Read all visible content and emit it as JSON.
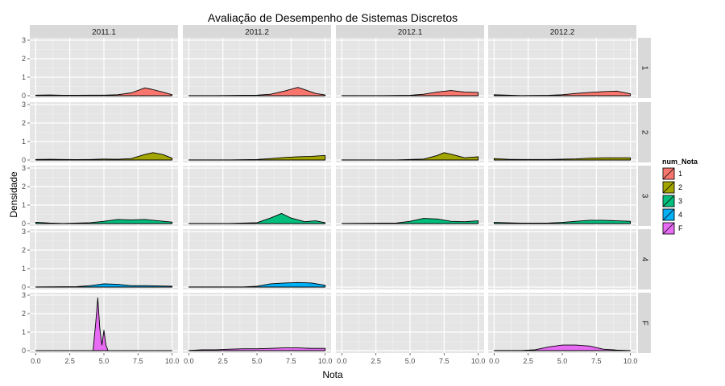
{
  "chart_data": {
    "type": "area",
    "subtype": "faceted density",
    "title": "Avaliação de Desempenho de Sistemas Discretos",
    "xlabel": "Nota",
    "ylabel": "Densidade",
    "xlim": [
      0,
      10
    ],
    "ylim": [
      0,
      3
    ],
    "x_ticks": [
      "0.0",
      "2.5",
      "5.0",
      "7.5",
      "10.0"
    ],
    "y_ticks": [
      "0",
      "1",
      "2",
      "3"
    ],
    "columns": [
      "2011.1",
      "2011.2",
      "2012.1",
      "2012.2"
    ],
    "rows": [
      "1",
      "2",
      "3",
      "4",
      "F"
    ],
    "grid": true,
    "legend": {
      "title": "num_Nota",
      "position": "right",
      "entries": [
        {
          "label": "1",
          "color": "#F8766D"
        },
        {
          "label": "2",
          "color": "#A3A500"
        },
        {
          "label": "3",
          "color": "#00BF7D"
        },
        {
          "label": "4",
          "color": "#00B0F6"
        },
        {
          "label": "F",
          "color": "#E76BF3"
        }
      ]
    },
    "panels": [
      {
        "column": "2011.1",
        "row": "1",
        "points": [
          [
            0,
            0.03
          ],
          [
            1,
            0.04
          ],
          [
            2,
            0.02
          ],
          [
            3,
            0.02
          ],
          [
            4,
            0.03
          ],
          [
            5,
            0.03
          ],
          [
            6,
            0.05
          ],
          [
            7,
            0.15
          ],
          [
            8,
            0.42
          ],
          [
            8.5,
            0.35
          ],
          [
            9.3,
            0.2
          ],
          [
            10,
            0.05
          ]
        ]
      },
      {
        "column": "2011.2",
        "row": "1",
        "points": [
          [
            0,
            0.01
          ],
          [
            2,
            0.01
          ],
          [
            4,
            0.02
          ],
          [
            5,
            0.03
          ],
          [
            6,
            0.08
          ],
          [
            7,
            0.25
          ],
          [
            8,
            0.45
          ],
          [
            8.6,
            0.3
          ],
          [
            9.3,
            0.12
          ],
          [
            10,
            0.04
          ]
        ]
      },
      {
        "column": "2012.1",
        "row": "1",
        "points": [
          [
            0,
            0.01
          ],
          [
            3,
            0.01
          ],
          [
            5,
            0.02
          ],
          [
            6,
            0.08
          ],
          [
            7,
            0.2
          ],
          [
            8,
            0.28
          ],
          [
            9,
            0.2
          ],
          [
            10,
            0.18
          ]
        ]
      },
      {
        "column": "2012.2",
        "row": "1",
        "points": [
          [
            0,
            0.05
          ],
          [
            1,
            0.03
          ],
          [
            2,
            0.01
          ],
          [
            4,
            0.02
          ],
          [
            5,
            0.05
          ],
          [
            6,
            0.12
          ],
          [
            7,
            0.18
          ],
          [
            8,
            0.22
          ],
          [
            9,
            0.25
          ],
          [
            10,
            0.1
          ]
        ]
      },
      {
        "column": "2011.1",
        "row": "2",
        "points": [
          [
            0,
            0.03
          ],
          [
            1,
            0.04
          ],
          [
            2,
            0.03
          ],
          [
            3,
            0.02
          ],
          [
            4,
            0.03
          ],
          [
            5,
            0.05
          ],
          [
            6,
            0.04
          ],
          [
            7,
            0.08
          ],
          [
            8,
            0.3
          ],
          [
            8.6,
            0.4
          ],
          [
            9.3,
            0.3
          ],
          [
            10,
            0.1
          ]
        ]
      },
      {
        "column": "2011.2",
        "row": "2",
        "points": [
          [
            0,
            0.01
          ],
          [
            3,
            0.01
          ],
          [
            5,
            0.03
          ],
          [
            6,
            0.08
          ],
          [
            7,
            0.14
          ],
          [
            8,
            0.18
          ],
          [
            9,
            0.2
          ],
          [
            10,
            0.25
          ]
        ]
      },
      {
        "column": "2012.1",
        "row": "2",
        "points": [
          [
            0,
            0.01
          ],
          [
            4,
            0.01
          ],
          [
            6,
            0.05
          ],
          [
            7,
            0.25
          ],
          [
            7.5,
            0.4
          ],
          [
            8.2,
            0.28
          ],
          [
            9,
            0.12
          ],
          [
            10,
            0.18
          ]
        ]
      },
      {
        "column": "2012.2",
        "row": "2",
        "points": [
          [
            0,
            0.08
          ],
          [
            1,
            0.04
          ],
          [
            2,
            0.03
          ],
          [
            4,
            0.03
          ],
          [
            6,
            0.06
          ],
          [
            7,
            0.1
          ],
          [
            8,
            0.12
          ],
          [
            10,
            0.12
          ]
        ]
      },
      {
        "column": "2011.1",
        "row": "3",
        "points": [
          [
            0,
            0.07
          ],
          [
            1,
            0.03
          ],
          [
            2,
            0.01
          ],
          [
            4,
            0.05
          ],
          [
            5,
            0.12
          ],
          [
            6,
            0.22
          ],
          [
            7,
            0.2
          ],
          [
            8,
            0.22
          ],
          [
            9,
            0.15
          ],
          [
            10,
            0.08
          ]
        ]
      },
      {
        "column": "2011.2",
        "row": "3",
        "points": [
          [
            0,
            0.01
          ],
          [
            3,
            0.01
          ],
          [
            5,
            0.05
          ],
          [
            6,
            0.3
          ],
          [
            6.8,
            0.55
          ],
          [
            7.5,
            0.3
          ],
          [
            8.5,
            0.1
          ],
          [
            9.3,
            0.15
          ],
          [
            10,
            0.05
          ]
        ]
      },
      {
        "column": "2012.1",
        "row": "3",
        "points": [
          [
            0,
            0.01
          ],
          [
            4,
            0.03
          ],
          [
            5,
            0.12
          ],
          [
            6,
            0.28
          ],
          [
            7,
            0.25
          ],
          [
            8,
            0.12
          ],
          [
            9,
            0.1
          ],
          [
            10,
            0.15
          ]
        ]
      },
      {
        "column": "2012.2",
        "row": "3",
        "points": [
          [
            0,
            0.06
          ],
          [
            2,
            0.02
          ],
          [
            4,
            0.03
          ],
          [
            5,
            0.06
          ],
          [
            6,
            0.12
          ],
          [
            7,
            0.18
          ],
          [
            8,
            0.18
          ],
          [
            9,
            0.15
          ],
          [
            10,
            0.12
          ]
        ]
      },
      {
        "column": "2011.1",
        "row": "4",
        "points": [
          [
            0,
            0.01
          ],
          [
            3,
            0.02
          ],
          [
            4,
            0.08
          ],
          [
            5,
            0.18
          ],
          [
            6,
            0.15
          ],
          [
            7,
            0.08
          ],
          [
            8,
            0.08
          ],
          [
            10,
            0.05
          ]
        ]
      },
      {
        "column": "2011.2",
        "row": "4",
        "points": [
          [
            0,
            0.01
          ],
          [
            4,
            0.01
          ],
          [
            5,
            0.05
          ],
          [
            6,
            0.18
          ],
          [
            7,
            0.22
          ],
          [
            8,
            0.25
          ],
          [
            9,
            0.22
          ],
          [
            10,
            0.1
          ]
        ]
      },
      {
        "column": "2011.1",
        "row": "F",
        "points": [
          [
            0,
            0
          ],
          [
            4.2,
            0
          ],
          [
            4.4,
            1.5
          ],
          [
            4.55,
            2.85
          ],
          [
            4.7,
            1.2
          ],
          [
            4.85,
            0.3
          ],
          [
            5.0,
            1.1
          ],
          [
            5.15,
            0.3
          ],
          [
            5.3,
            0
          ],
          [
            10,
            0
          ]
        ]
      },
      {
        "column": "2011.2",
        "row": "F",
        "points": [
          [
            0,
            0.01
          ],
          [
            1,
            0.05
          ],
          [
            2,
            0.05
          ],
          [
            3,
            0.08
          ],
          [
            4,
            0.1
          ],
          [
            5,
            0.1
          ],
          [
            6,
            0.12
          ],
          [
            7,
            0.15
          ],
          [
            8,
            0.15
          ],
          [
            9,
            0.12
          ],
          [
            10,
            0.12
          ]
        ]
      },
      {
        "column": "2012.2",
        "row": "F",
        "points": [
          [
            0,
            0.01
          ],
          [
            2,
            0.01
          ],
          [
            3,
            0.05
          ],
          [
            4,
            0.2
          ],
          [
            5,
            0.3
          ],
          [
            6,
            0.3
          ],
          [
            7,
            0.25
          ],
          [
            8,
            0.08
          ],
          [
            9,
            0.03
          ],
          [
            10,
            0
          ]
        ]
      }
    ]
  }
}
